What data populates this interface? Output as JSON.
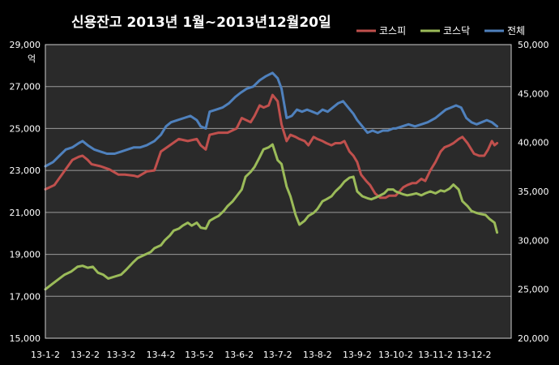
{
  "chart_data": {
    "type": "line",
    "title": "신용잔고 2013년 1월~2013년12월20일",
    "y_left_unit": "억",
    "x_ticks": [
      "13-1-2",
      "13-2-2",
      "13-3-2",
      "13-4-2",
      "13-5-2",
      "13-6-2",
      "13-7-2",
      "13-8-2",
      "13-9-2",
      "13-10-2",
      "13-11-2",
      "13-12-2"
    ],
    "y_left": {
      "min": 15000,
      "max": 29000,
      "ticks": [
        "15,000",
        "17,000",
        "19,000",
        "21,000",
        "23,000",
        "25,000",
        "27,000",
        "29,000"
      ]
    },
    "y_right": {
      "min": 20000,
      "max": 50000,
      "ticks": [
        "20,000",
        "25,000",
        "30,000",
        "35,000",
        "40,000",
        "45,000",
        "50,000"
      ]
    },
    "series": [
      {
        "name": "코스피",
        "axis": "left",
        "color": "#c0504d",
        "points": [
          [
            "13-1-2",
            22100
          ],
          [
            "13-1-9",
            22300
          ],
          [
            "13-1-16",
            22900
          ],
          [
            "13-1-23",
            23500
          ],
          [
            "13-1-28",
            23650
          ],
          [
            "13-1-31",
            23700
          ],
          [
            "13-2-4",
            23500
          ],
          [
            "13-2-7",
            23300
          ],
          [
            "13-2-14",
            23200
          ],
          [
            "13-2-21",
            23050
          ],
          [
            "13-2-28",
            22800
          ],
          [
            "13-3-5",
            22800
          ],
          [
            "13-3-12",
            22750
          ],
          [
            "13-3-15",
            22700
          ],
          [
            "13-3-22",
            22950
          ],
          [
            "13-3-28",
            23000
          ],
          [
            "13-4-2",
            23900
          ],
          [
            "13-4-9",
            24200
          ],
          [
            "13-4-16",
            24500
          ],
          [
            "13-4-23",
            24400
          ],
          [
            "13-4-30",
            24500
          ],
          [
            "13-5-3",
            24200
          ],
          [
            "13-5-7",
            24000
          ],
          [
            "13-5-10",
            24700
          ],
          [
            "13-5-17",
            24800
          ],
          [
            "13-5-24",
            24800
          ],
          [
            "13-5-31",
            25000
          ],
          [
            "13-6-4",
            25500
          ],
          [
            "13-6-11",
            25300
          ],
          [
            "13-6-14",
            25600
          ],
          [
            "13-6-18",
            26100
          ],
          [
            "13-6-21",
            26000
          ],
          [
            "13-6-25",
            26100
          ],
          [
            "13-6-28",
            26600
          ],
          [
            "13-7-2",
            26300
          ],
          [
            "13-7-5",
            25200
          ],
          [
            "13-7-7",
            24800
          ],
          [
            "13-7-9",
            24400
          ],
          [
            "13-7-12",
            24700
          ],
          [
            "13-7-16",
            24600
          ],
          [
            "13-7-19",
            24500
          ],
          [
            "13-7-23",
            24400
          ],
          [
            "13-7-26",
            24200
          ],
          [
            "13-7-30",
            24600
          ],
          [
            "13-8-2",
            24500
          ],
          [
            "13-8-6",
            24400
          ],
          [
            "13-8-9",
            24300
          ],
          [
            "13-8-13",
            24200
          ],
          [
            "13-8-16",
            24300
          ],
          [
            "13-8-20",
            24300
          ],
          [
            "13-8-23",
            24400
          ],
          [
            "13-8-27",
            23900
          ],
          [
            "13-8-30",
            23700
          ],
          [
            "13-9-2",
            23400
          ],
          [
            "13-9-5",
            22800
          ],
          [
            "13-9-9",
            22500
          ],
          [
            "13-9-12",
            22300
          ],
          [
            "13-9-16",
            21900
          ],
          [
            "13-9-20",
            21700
          ],
          [
            "13-9-24",
            21700
          ],
          [
            "13-9-27",
            21800
          ],
          [
            "13-10-2",
            21800
          ],
          [
            "13-10-8",
            22200
          ],
          [
            "13-10-11",
            22300
          ],
          [
            "13-10-15",
            22400
          ],
          [
            "13-10-18",
            22400
          ],
          [
            "13-10-22",
            22600
          ],
          [
            "13-10-25",
            22500
          ],
          [
            "13-10-29",
            23000
          ],
          [
            "13-11-2",
            23400
          ],
          [
            "13-11-6",
            23900
          ],
          [
            "13-11-9",
            24100
          ],
          [
            "13-11-13",
            24200
          ],
          [
            "13-11-16",
            24300
          ],
          [
            "13-11-20",
            24500
          ],
          [
            "13-11-23",
            24600
          ],
          [
            "13-11-27",
            24300
          ],
          [
            "13-11-30",
            24000
          ],
          [
            "13-12-2",
            23800
          ],
          [
            "13-12-6",
            23700
          ],
          [
            "13-12-10",
            23700
          ],
          [
            "13-12-13",
            24000
          ],
          [
            "13-12-16",
            24400
          ],
          [
            "13-12-18",
            24200
          ],
          [
            "13-12-20",
            24300
          ]
        ]
      },
      {
        "name": "코스닥",
        "axis": "right",
        "color": "#9bbb59",
        "points": [
          [
            "13-1-2",
            25000
          ],
          [
            "13-1-7",
            25500
          ],
          [
            "13-1-12",
            26000
          ],
          [
            "13-1-17",
            26500
          ],
          [
            "13-1-22",
            26800
          ],
          [
            "13-1-27",
            27300
          ],
          [
            "13-1-31",
            27400
          ],
          [
            "13-2-4",
            27200
          ],
          [
            "13-2-8",
            27300
          ],
          [
            "13-2-12",
            26700
          ],
          [
            "13-2-16",
            26500
          ],
          [
            "13-2-20",
            26100
          ],
          [
            "13-2-25",
            26300
          ],
          [
            "13-3-2",
            26500
          ],
          [
            "13-3-6",
            27000
          ],
          [
            "13-3-11",
            27700
          ],
          [
            "13-3-15",
            28200
          ],
          [
            "13-3-20",
            28500
          ],
          [
            "13-3-25",
            28800
          ],
          [
            "13-3-28",
            29200
          ],
          [
            "13-4-2",
            29500
          ],
          [
            "13-4-5",
            30000
          ],
          [
            "13-4-9",
            30500
          ],
          [
            "13-4-12",
            31000
          ],
          [
            "13-4-16",
            31200
          ],
          [
            "13-4-19",
            31500
          ],
          [
            "13-4-23",
            31800
          ],
          [
            "13-4-26",
            31500
          ],
          [
            "13-4-30",
            31800
          ],
          [
            "13-5-3",
            31300
          ],
          [
            "13-5-7",
            31200
          ],
          [
            "13-5-10",
            32000
          ],
          [
            "13-5-14",
            32300
          ],
          [
            "13-5-17",
            32500
          ],
          [
            "13-5-21",
            33000
          ],
          [
            "13-5-24",
            33500
          ],
          [
            "13-5-28",
            34000
          ],
          [
            "13-5-31",
            34500
          ],
          [
            "13-6-4",
            35200
          ],
          [
            "13-6-7",
            36500
          ],
          [
            "13-6-11",
            37000
          ],
          [
            "13-6-14",
            37500
          ],
          [
            "13-6-18",
            38500
          ],
          [
            "13-6-21",
            39300
          ],
          [
            "13-6-25",
            39500
          ],
          [
            "13-6-28",
            39800
          ],
          [
            "13-7-2",
            38200
          ],
          [
            "13-7-5",
            37800
          ],
          [
            "13-7-9",
            35500
          ],
          [
            "13-7-12",
            34500
          ],
          [
            "13-7-16",
            32600
          ],
          [
            "13-7-19",
            31600
          ],
          [
            "13-7-23",
            32000
          ],
          [
            "13-7-26",
            32500
          ],
          [
            "13-7-30",
            32800
          ],
          [
            "13-8-2",
            33200
          ],
          [
            "13-8-6",
            34000
          ],
          [
            "13-8-9",
            34200
          ],
          [
            "13-8-13",
            34500
          ],
          [
            "13-8-16",
            35000
          ],
          [
            "13-8-20",
            35500
          ],
          [
            "13-8-23",
            36000
          ],
          [
            "13-8-27",
            36400
          ],
          [
            "13-8-30",
            36500
          ],
          [
            "13-9-2",
            35000
          ],
          [
            "13-9-6",
            34500
          ],
          [
            "13-9-10",
            34300
          ],
          [
            "13-9-13",
            34200
          ],
          [
            "13-9-17",
            34400
          ],
          [
            "13-9-23",
            34800
          ],
          [
            "13-9-26",
            35200
          ],
          [
            "13-9-30",
            35200
          ],
          [
            "13-10-2",
            35000
          ],
          [
            "13-10-8",
            34700
          ],
          [
            "13-10-11",
            34600
          ],
          [
            "13-10-15",
            34700
          ],
          [
            "13-10-18",
            34800
          ],
          [
            "13-10-22",
            34600
          ],
          [
            "13-10-25",
            34800
          ],
          [
            "13-10-29",
            35000
          ],
          [
            "13-11-2",
            34800
          ],
          [
            "13-11-6",
            35100
          ],
          [
            "13-11-9",
            35000
          ],
          [
            "13-11-13",
            35300
          ],
          [
            "13-11-16",
            35700
          ],
          [
            "13-11-20",
            35200
          ],
          [
            "13-11-23",
            34000
          ],
          [
            "13-11-27",
            33500
          ],
          [
            "13-11-30",
            33000
          ],
          [
            "13-12-4",
            32800
          ],
          [
            "13-12-7",
            32700
          ],
          [
            "13-12-11",
            32600
          ],
          [
            "13-12-14",
            32200
          ],
          [
            "13-12-18",
            31800
          ],
          [
            "13-12-20",
            30800
          ]
        ]
      },
      {
        "name": "전체",
        "axis": "left",
        "color": "#4f81bd",
        "points": [
          [
            "13-1-2",
            23200
          ],
          [
            "13-1-8",
            23400
          ],
          [
            "13-1-13",
            23700
          ],
          [
            "13-1-18",
            24000
          ],
          [
            "13-1-23",
            24100
          ],
          [
            "13-1-28",
            24300
          ],
          [
            "13-1-31",
            24400
          ],
          [
            "13-2-4",
            24200
          ],
          [
            "13-2-9",
            24000
          ],
          [
            "13-2-14",
            23900
          ],
          [
            "13-2-19",
            23800
          ],
          [
            "13-2-25",
            23800
          ],
          [
            "13-3-2",
            23900
          ],
          [
            "13-3-7",
            24000
          ],
          [
            "13-3-12",
            24100
          ],
          [
            "13-3-17",
            24100
          ],
          [
            "13-3-22",
            24200
          ],
          [
            "13-3-28",
            24400
          ],
          [
            "13-4-2",
            24700
          ],
          [
            "13-4-6",
            25100
          ],
          [
            "13-4-10",
            25300
          ],
          [
            "13-4-15",
            25400
          ],
          [
            "13-4-20",
            25500
          ],
          [
            "13-4-25",
            25600
          ],
          [
            "13-4-30",
            25400
          ],
          [
            "13-5-3",
            25100
          ],
          [
            "13-5-7",
            25000
          ],
          [
            "13-5-10",
            25800
          ],
          [
            "13-5-15",
            25900
          ],
          [
            "13-5-20",
            26000
          ],
          [
            "13-5-25",
            26200
          ],
          [
            "13-5-30",
            26500
          ],
          [
            "13-6-3",
            26700
          ],
          [
            "13-6-8",
            26900
          ],
          [
            "13-6-13",
            27000
          ],
          [
            "13-6-18",
            27300
          ],
          [
            "13-6-23",
            27500
          ],
          [
            "13-6-28",
            27650
          ],
          [
            "13-7-2",
            27400
          ],
          [
            "13-7-5",
            26900
          ],
          [
            "13-7-9",
            25500
          ],
          [
            "13-7-13",
            25600
          ],
          [
            "13-7-17",
            25900
          ],
          [
            "13-7-21",
            25800
          ],
          [
            "13-7-25",
            25900
          ],
          [
            "13-7-29",
            25800
          ],
          [
            "13-8-2",
            25700
          ],
          [
            "13-8-6",
            25900
          ],
          [
            "13-8-10",
            25800
          ],
          [
            "13-8-14",
            26000
          ],
          [
            "13-8-18",
            26200
          ],
          [
            "13-8-22",
            26300
          ],
          [
            "13-8-26",
            26000
          ],
          [
            "13-8-30",
            25700
          ],
          [
            "13-9-2",
            25400
          ],
          [
            "13-9-6",
            25100
          ],
          [
            "13-9-10",
            24800
          ],
          [
            "13-9-14",
            24900
          ],
          [
            "13-9-18",
            24800
          ],
          [
            "13-9-22",
            24900
          ],
          [
            "13-9-26",
            24900
          ],
          [
            "13-9-30",
            25000
          ],
          [
            "13-10-2",
            25000
          ],
          [
            "13-10-7",
            25100
          ],
          [
            "13-10-12",
            25200
          ],
          [
            "13-10-17",
            25100
          ],
          [
            "13-10-22",
            25200
          ],
          [
            "13-10-27",
            25300
          ],
          [
            "13-11-2",
            25500
          ],
          [
            "13-11-6",
            25700
          ],
          [
            "13-11-10",
            25900
          ],
          [
            "13-11-14",
            26000
          ],
          [
            "13-11-18",
            26100
          ],
          [
            "13-11-22",
            26000
          ],
          [
            "13-11-26",
            25500
          ],
          [
            "13-11-30",
            25300
          ],
          [
            "13-12-4",
            25200
          ],
          [
            "13-12-8",
            25300
          ],
          [
            "13-12-12",
            25400
          ],
          [
            "13-12-16",
            25300
          ],
          [
            "13-12-18",
            25200
          ],
          [
            "13-12-20",
            25100
          ]
        ]
      }
    ]
  }
}
